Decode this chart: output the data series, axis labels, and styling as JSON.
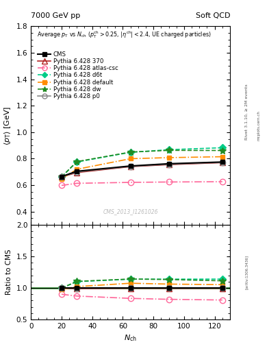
{
  "title_left": "7000 GeV pp",
  "title_right": "Soft QCD",
  "subtitle": "Average $p_{\\rm T}$ vs $N_{\\rm ch}$ ($p_{\\rm T}^{\\rm ch}>0.25$, $|\\eta^{\\rm ch}|<2.4$, UE charged particles)",
  "ylabel_main": "$\\langle p_{\\rm T} \\rangle$ [GeV]",
  "ylabel_ratio": "Ratio to CMS",
  "xlabel": "$N_{\\rm ch}$",
  "watermark": "CMS_2013_I1261026",
  "right_label_top": "Rivet 3.1.10, ≥ 2M events",
  "right_label_bot": "[arXiv:1306.3436]",
  "right_label_mid": "mcplots.cern.ch",
  "ylim_main": [
    0.3,
    1.8
  ],
  "ylim_ratio": [
    0.5,
    2.0
  ],
  "yticks_main": [
    0.4,
    0.6,
    0.8,
    1.0,
    1.2,
    1.4,
    1.6,
    1.8
  ],
  "yticks_ratio": [
    0.5,
    1.0,
    1.5,
    2.0
  ],
  "xlim": [
    0,
    130
  ],
  "series": [
    {
      "label": "CMS",
      "x": [
        20,
        30,
        65,
        90,
        125
      ],
      "y": [
        0.665,
        0.705,
        0.745,
        0.762,
        0.775
      ],
      "color": "black",
      "linestyle": "-",
      "marker": "s",
      "markerfacecolor": "black",
      "markersize": 5,
      "linewidth": 1.5,
      "zorder": 10,
      "is_data": true
    },
    {
      "label": "Pythia 6.428 370",
      "x": [
        20,
        30,
        65,
        90,
        125
      ],
      "y": [
        0.662,
        0.695,
        0.74,
        0.755,
        0.77
      ],
      "color": "#b22222",
      "linestyle": "-",
      "marker": "^",
      "markerfacecolor": "none",
      "markersize": 6,
      "linewidth": 1.2,
      "zorder": 5,
      "is_data": false
    },
    {
      "label": "Pythia 6.428 atlas-csc",
      "x": [
        20,
        30,
        65,
        90,
        125
      ],
      "y": [
        0.598,
        0.614,
        0.621,
        0.624,
        0.626
      ],
      "color": "#ff6699",
      "linestyle": "-.",
      "marker": "o",
      "markerfacecolor": "none",
      "markersize": 6,
      "linewidth": 1.2,
      "zorder": 5,
      "is_data": false
    },
    {
      "label": "Pythia 6.428 d6t",
      "x": [
        20,
        30,
        65,
        90,
        125
      ],
      "y": [
        0.663,
        0.775,
        0.848,
        0.868,
        0.883
      ],
      "color": "#00cc88",
      "linestyle": "--",
      "marker": "D",
      "markerfacecolor": "#00cc88",
      "markersize": 5,
      "linewidth": 1.2,
      "zorder": 5,
      "is_data": false
    },
    {
      "label": "Pythia 6.428 default",
      "x": [
        20,
        30,
        65,
        90,
        125
      ],
      "y": [
        0.648,
        0.72,
        0.8,
        0.808,
        0.815
      ],
      "color": "#ff8c00",
      "linestyle": "-.",
      "marker": "s",
      "markerfacecolor": "#ff8c00",
      "markersize": 5,
      "linewidth": 1.2,
      "zorder": 5,
      "is_data": false
    },
    {
      "label": "Pythia 6.428 dw",
      "x": [
        20,
        30,
        65,
        90,
        125
      ],
      "y": [
        0.663,
        0.778,
        0.85,
        0.863,
        0.862
      ],
      "color": "#228b22",
      "linestyle": "--",
      "marker": "*",
      "markerfacecolor": "#228b22",
      "markersize": 7,
      "linewidth": 1.2,
      "zorder": 5,
      "is_data": false
    },
    {
      "label": "Pythia 6.428 p0",
      "x": [
        20,
        30,
        65,
        90,
        125
      ],
      "y": [
        0.663,
        0.7,
        0.742,
        0.758,
        0.772
      ],
      "color": "#888888",
      "linestyle": "-",
      "marker": "o",
      "markerfacecolor": "none",
      "markersize": 6,
      "linewidth": 1.2,
      "zorder": 5,
      "is_data": false
    }
  ]
}
